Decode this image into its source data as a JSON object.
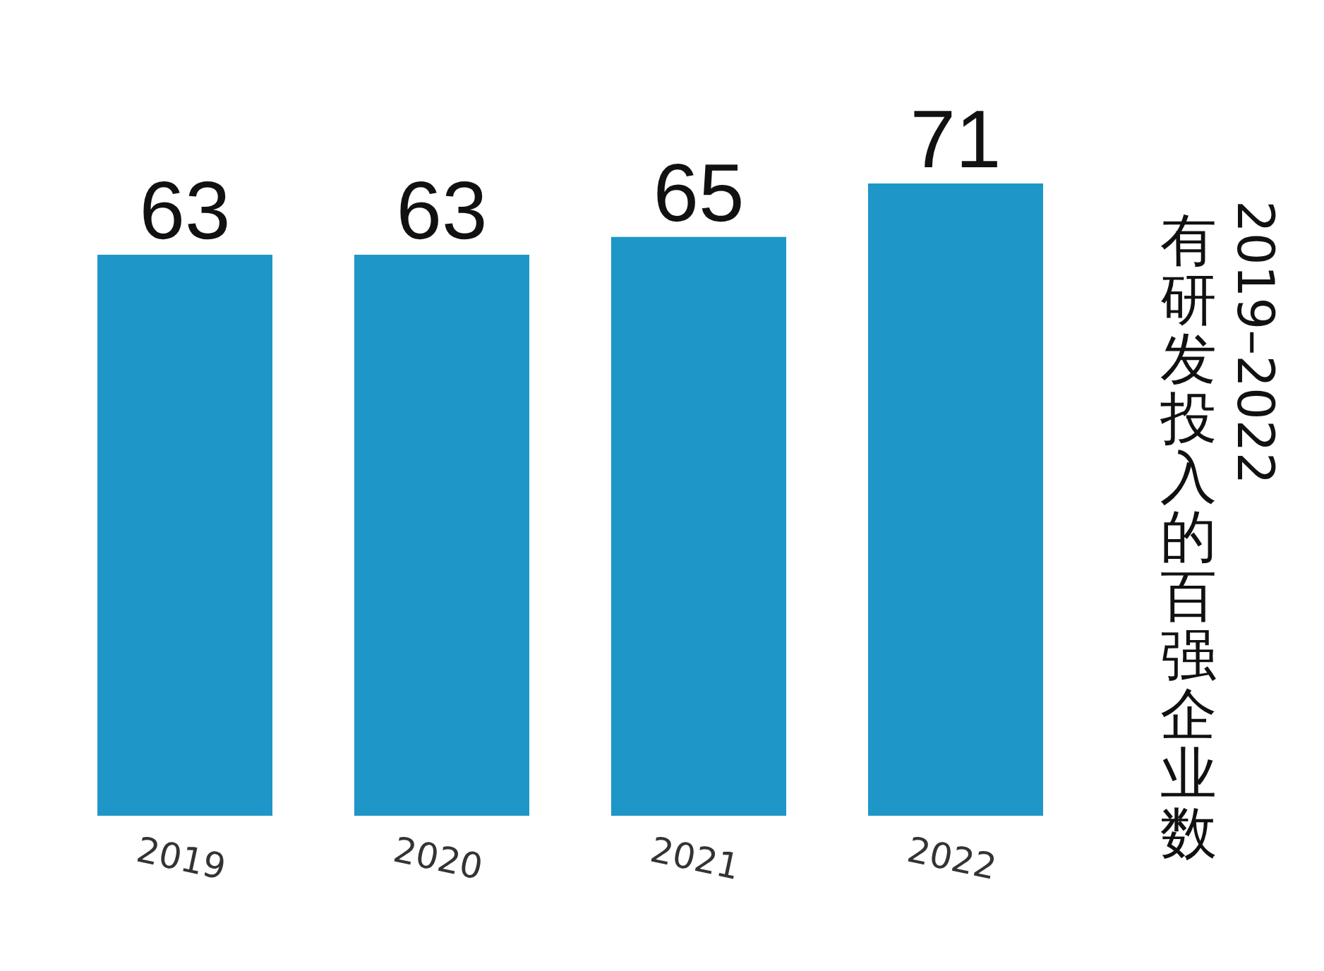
{
  "chart_data": {
    "type": "bar",
    "title": "2019–2022有研发投入的百强企业数",
    "categories": [
      "2019",
      "2020",
      "2021",
      "2022"
    ],
    "values": [
      63,
      63,
      65,
      71
    ],
    "color": "#1e96c8",
    "data_labels": true,
    "tick_labels": "x"
  }
}
